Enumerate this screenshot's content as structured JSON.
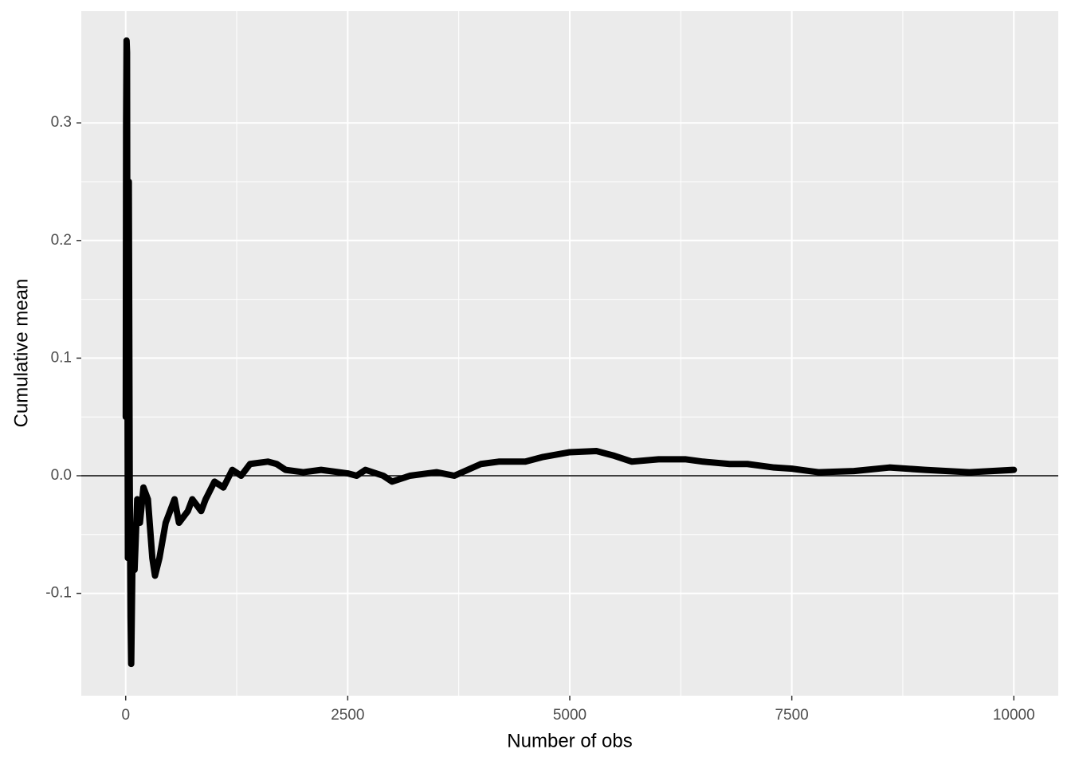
{
  "chart_data": {
    "type": "line",
    "x_label": "Number of obs",
    "y_label": "Cumulative mean",
    "xlim": [
      -500,
      10500
    ],
    "ylim": [
      -0.187,
      0.395
    ],
    "xticks": [
      0,
      2500,
      5000,
      7500,
      10000
    ],
    "yticks": [
      -0.1,
      {
        "value": 0,
        "label": "0.0"
      },
      0.1,
      0.2,
      0.3
    ],
    "grid": true,
    "hline": 0,
    "series": [
      {
        "color": "#000000",
        "x": [
          1,
          5,
          10,
          15,
          20,
          25,
          35,
          45,
          55,
          62,
          75,
          90,
          100,
          130,
          160,
          200,
          250,
          300,
          330,
          380,
          450,
          500,
          550,
          600,
          700,
          750,
          850,
          900,
          1000,
          1100,
          1200,
          1300,
          1400,
          1600,
          1700,
          1800,
          2000,
          2200,
          2500,
          2600,
          2700,
          2900,
          3000,
          3200,
          3500,
          3700,
          4000,
          4200,
          4500,
          4700,
          5000,
          5300,
          5500,
          5700,
          6000,
          6300,
          6500,
          6800,
          7000,
          7300,
          7500,
          7800,
          8200,
          8600,
          9000,
          9500,
          10000
        ],
        "values": [
          0.05,
          0.3,
          0.37,
          0.36,
          0.1,
          -0.07,
          0.25,
          0.0,
          -0.12,
          -0.16,
          -0.08,
          -0.06,
          -0.08,
          -0.02,
          -0.04,
          -0.01,
          -0.02,
          -0.07,
          -0.085,
          -0.07,
          -0.04,
          -0.03,
          -0.02,
          -0.04,
          -0.03,
          -0.02,
          -0.03,
          -0.02,
          -0.005,
          -0.01,
          0.005,
          0.0,
          0.01,
          0.012,
          0.01,
          0.005,
          0.003,
          0.005,
          0.002,
          0.0,
          0.005,
          0.0,
          -0.005,
          0.0,
          0.003,
          0.0,
          0.01,
          0.012,
          0.012,
          0.016,
          0.02,
          0.021,
          0.017,
          0.012,
          0.014,
          0.014,
          0.012,
          0.01,
          0.01,
          0.007,
          0.006,
          0.003,
          0.004,
          0.007,
          0.005,
          0.003,
          0.005
        ]
      }
    ]
  }
}
